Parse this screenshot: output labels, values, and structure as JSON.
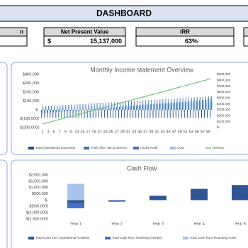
{
  "header": {
    "title": "DASHBOARD"
  },
  "kpis": [
    {
      "label": "n"
    },
    {
      "label": "Net Present Value",
      "currency": "$",
      "value": "15,137,000"
    },
    {
      "label": "IRR",
      "value": "63%"
    }
  ],
  "chart_data": [
    {
      "type": "combo",
      "title": "Monthly Income statement Overview",
      "grid": false,
      "legend": "bottom",
      "categories": [
        1,
        null,
        3,
        null,
        5,
        null,
        7,
        null,
        9,
        null,
        11,
        null,
        13,
        null,
        15,
        null,
        17,
        null,
        19,
        null,
        21,
        null,
        23,
        null,
        25,
        null,
        27,
        null,
        29,
        null,
        31,
        null,
        33,
        null,
        35,
        null,
        37,
        null,
        39,
        null,
        41,
        null,
        43,
        null,
        45,
        null,
        47,
        null,
        49,
        null,
        51,
        null,
        53,
        null,
        55,
        null,
        57,
        null,
        59,
        null
      ],
      "ylim": [
        -200000,
        400000
      ],
      "yticks": [
        {
          "value": 400000,
          "label": "$400,000"
        },
        {
          "value": 300000,
          "label": "$300,000"
        },
        {
          "value": 200000,
          "label": "$200,000"
        },
        {
          "value": 100000,
          "label": "$100,000"
        },
        {
          "value": 0,
          "label": "$-"
        },
        {
          "value": -100000,
          "label": "$(100,000)"
        },
        {
          "value": -200000,
          "label": "$(200,000)"
        }
      ],
      "y2lim": [
        0,
        900000
      ],
      "y2ticks": [
        {
          "value": 900000,
          "label": "$900,000"
        },
        {
          "value": 800000,
          "label": "$800,000"
        },
        {
          "value": 700000,
          "label": "$700,000"
        },
        {
          "value": 600000,
          "label": "$600,000"
        },
        {
          "value": 500000,
          "label": "$500,000"
        },
        {
          "value": 400000,
          "label": "$400,000"
        },
        {
          "value": 300000,
          "label": "$300,000"
        },
        {
          "value": 200000,
          "label": "$200,000"
        },
        {
          "value": 100000,
          "label": "$100,000"
        },
        {
          "value": 0,
          "label": "$-"
        }
      ],
      "series": [
        {
          "name": "Total Operational Expenses",
          "color": "#1f4e8c",
          "values": [
            -90000,
            -90000,
            -90000,
            -90000,
            -90000,
            -90000,
            -90000,
            -90000,
            -90000,
            -90000,
            -90000,
            -90000,
            -90000,
            -90000,
            -90000,
            -90000,
            -90000,
            -90000,
            -90000,
            -90000,
            -90000,
            -90000,
            -90000,
            -90000,
            -90000,
            -90000,
            -90000,
            -90000,
            -90000,
            -90000,
            -90000,
            -90000,
            -90000,
            -90000,
            -90000,
            -90000,
            -90000,
            -90000,
            -90000,
            -90000,
            -90000,
            -90000,
            -90000,
            -90000,
            -90000,
            -90000,
            -90000,
            -90000,
            -90000,
            -90000,
            -90000,
            -90000,
            -90000,
            -90000,
            -90000,
            -90000,
            -90000,
            -90000,
            -90000,
            -90000
          ]
        },
        {
          "name": "Profit After Tax & Interest",
          "color": "#2e75b6",
          "values": [
            -40000,
            -37300,
            -34600,
            -31900,
            -29200,
            -26500,
            -23800,
            -21100,
            -18400,
            -15700,
            -13000,
            -10300,
            -7600,
            -4900,
            -2200,
            500,
            3200,
            5900,
            8600,
            11300,
            14000,
            16700,
            19400,
            22100,
            24800,
            27500,
            30200,
            32900,
            35600,
            38300,
            41000,
            43700,
            46400,
            49100,
            51800,
            54500,
            57200,
            59900,
            62600,
            65300,
            68000,
            70700,
            73400,
            76100,
            78800,
            81500,
            84200,
            86900,
            89600,
            92300,
            95000,
            97700,
            100400,
            103100,
            105800,
            108500,
            111200,
            113900,
            116600,
            119300
          ]
        },
        {
          "name": "Gross Profit",
          "color": "#4472c4",
          "values": [
            40000,
            41900,
            43800,
            45700,
            47600,
            49500,
            51400,
            53300,
            55200,
            57100,
            59000,
            60900,
            62800,
            64700,
            66600,
            68500,
            70400,
            72300,
            74200,
            76100,
            78000,
            79900,
            81800,
            83700,
            85600,
            87500,
            89400,
            91300,
            93200,
            95100,
            97000,
            98900,
            100800,
            102700,
            104600,
            106500,
            108400,
            110300,
            112200,
            114100,
            116000,
            117900,
            119800,
            121700,
            123600,
            125500,
            127400,
            129300,
            131200,
            133100,
            135000,
            136900,
            138800,
            140700,
            142600,
            144500,
            146400,
            148300,
            150200,
            152100
          ]
        },
        {
          "name": "COS",
          "color": "#9dc3e6",
          "values": [
            20000,
            21200,
            22400,
            23600,
            24800,
            26000,
            27200,
            28400,
            29600,
            30800,
            32000,
            33200,
            34400,
            35600,
            36800,
            38000,
            39200,
            40400,
            41600,
            42800,
            44000,
            45200,
            46400,
            47600,
            48800,
            50000,
            51200,
            52400,
            53600,
            54800,
            56000,
            57200,
            58400,
            59600,
            60800,
            62000,
            63200,
            64400,
            65600,
            66800,
            68000,
            69200,
            70400,
            71600,
            72800,
            74000,
            75200,
            76400,
            77600,
            78800,
            80000,
            81200,
            82400,
            83600,
            84800,
            86000,
            87200,
            88400,
            89600,
            90800
          ]
        },
        {
          "name": "Revenu",
          "color": "#70c47a",
          "axis": "y2",
          "values": [
            60000,
            73000,
            86000,
            99000,
            112000,
            125000,
            138000,
            151000,
            164000,
            177000,
            190000,
            203000,
            216000,
            229000,
            242000,
            255000,
            268000,
            281000,
            294000,
            307000,
            320000,
            333000,
            346000,
            359000,
            372000,
            385000,
            398000,
            411000,
            424000,
            437000,
            450000,
            463000,
            476000,
            489000,
            502000,
            515000,
            528000,
            541000,
            554000,
            567000,
            580000,
            593000,
            606000,
            619000,
            632000,
            645000,
            658000,
            671000,
            684000,
            697000,
            710000,
            723000,
            736000,
            749000,
            762000,
            775000,
            788000,
            801000,
            814000,
            827000
          ]
        }
      ]
    },
    {
      "type": "stacked",
      "title": "Cash Flow",
      "grid": false,
      "legend": "bottom",
      "categories": [
        "Year 1",
        "Year 2",
        "Year 3",
        "Year 4",
        "Year 5"
      ],
      "ylim": [
        -1500000,
        2000000
      ],
      "yticks": [
        {
          "value": 2000000,
          "label": "$2,000,000"
        },
        {
          "value": 1500000,
          "label": "$1,500,000"
        },
        {
          "value": 1000000,
          "label": "$1,000,000"
        },
        {
          "value": 500000,
          "label": "$500,000"
        },
        {
          "value": 0,
          "label": "$-"
        },
        {
          "value": -500000,
          "label": "$(500,000)"
        },
        {
          "value": -1000000,
          "label": "$(1,000,000)"
        },
        {
          "value": -1500000,
          "label": "$(1,500,000)"
        }
      ],
      "series": [
        {
          "name": "Total Cash from Operational Activities",
          "color": "#2f5597",
          "values": [
            -250000,
            -30000,
            350000,
            900000,
            1200000
          ]
        },
        {
          "name": "Total Cash from Investing Activities",
          "color": "#4472c4",
          "values": [
            -400000,
            -100000,
            0,
            0,
            0
          ]
        },
        {
          "name": "Total Cash from Financing Activi",
          "color": "#a9c4eb",
          "values": [
            1300000,
            0,
            0,
            0,
            0
          ]
        }
      ]
    }
  ]
}
